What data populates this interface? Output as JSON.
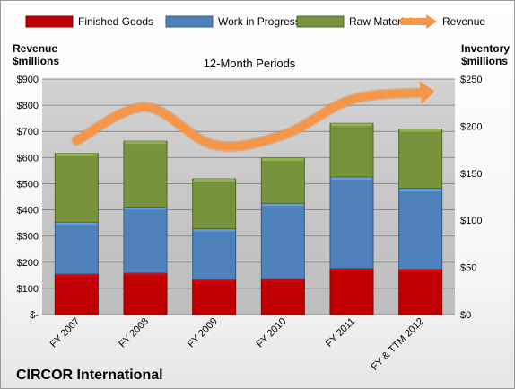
{
  "chart_data": {
    "type": "bar",
    "subtitle": "12-Month Periods",
    "company": "CIRCOR International",
    "left_axis_label_line1": "Revenue",
    "left_axis_label_line2": "$millions",
    "right_axis_label_line1": "Inventory",
    "right_axis_label_line2": "$millions",
    "categories": [
      "FY 2007",
      "FY 2008",
      "FY 2009",
      "FY 2010",
      "FY 2011",
      "FY & TTM 2012"
    ],
    "left_ticks": [
      "$-",
      "$100",
      "$200",
      "$300",
      "$400",
      "$500",
      "$600",
      "$700",
      "$800",
      "$900"
    ],
    "right_ticks": [
      "$0",
      "$50",
      "$100",
      "$150",
      "$200",
      "$250"
    ],
    "ylim_left": [
      0,
      900
    ],
    "ylim_right": [
      0,
      250
    ],
    "stacked": true,
    "series": [
      {
        "name": "Finished Goods",
        "axis": "right",
        "color": "#c00000",
        "values": [
          43,
          44,
          37,
          38,
          49,
          48
        ]
      },
      {
        "name": "Work in Progress",
        "axis": "right",
        "color": "#4f81bd",
        "values": [
          55,
          70,
          54,
          80,
          97,
          86
        ]
      },
      {
        "name": "Raw Materials",
        "axis": "right",
        "color": "#77933c",
        "values": [
          73,
          70,
          53,
          48,
          57,
          63
        ]
      },
      {
        "name": "Revenue",
        "axis": "left",
        "type": "line",
        "color": "#f79646",
        "values": [
          665,
          793,
          648,
          686,
          822,
          848
        ]
      }
    ],
    "legend_position": "top",
    "grid": true
  }
}
